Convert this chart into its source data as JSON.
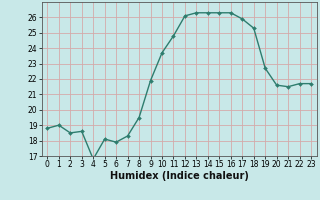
{
  "x": [
    0,
    1,
    2,
    3,
    4,
    5,
    6,
    7,
    8,
    9,
    10,
    11,
    12,
    13,
    14,
    15,
    16,
    17,
    18,
    19,
    20,
    21,
    22,
    23
  ],
  "y": [
    18.8,
    19.0,
    18.5,
    18.6,
    16.8,
    18.1,
    17.9,
    18.3,
    19.5,
    21.9,
    23.7,
    24.8,
    26.1,
    26.3,
    26.3,
    26.3,
    26.3,
    25.9,
    25.3,
    22.7,
    21.6,
    21.5,
    21.7,
    21.7
  ],
  "line_color": "#2e7d6e",
  "marker": "D",
  "marker_size": 2.0,
  "bg_color": "#c8e8e8",
  "grid_color": "#d4aaaa",
  "xlabel": "Humidex (Indice chaleur)",
  "ylim": [
    17,
    27
  ],
  "xlim": [
    -0.5,
    23.5
  ],
  "yticks": [
    17,
    18,
    19,
    20,
    21,
    22,
    23,
    24,
    25,
    26
  ],
  "xticks": [
    0,
    1,
    2,
    3,
    4,
    5,
    6,
    7,
    8,
    9,
    10,
    11,
    12,
    13,
    14,
    15,
    16,
    17,
    18,
    19,
    20,
    21,
    22,
    23
  ],
  "tick_labelsize": 5.5,
  "xlabel_fontsize": 7.0,
  "linewidth": 1.0
}
